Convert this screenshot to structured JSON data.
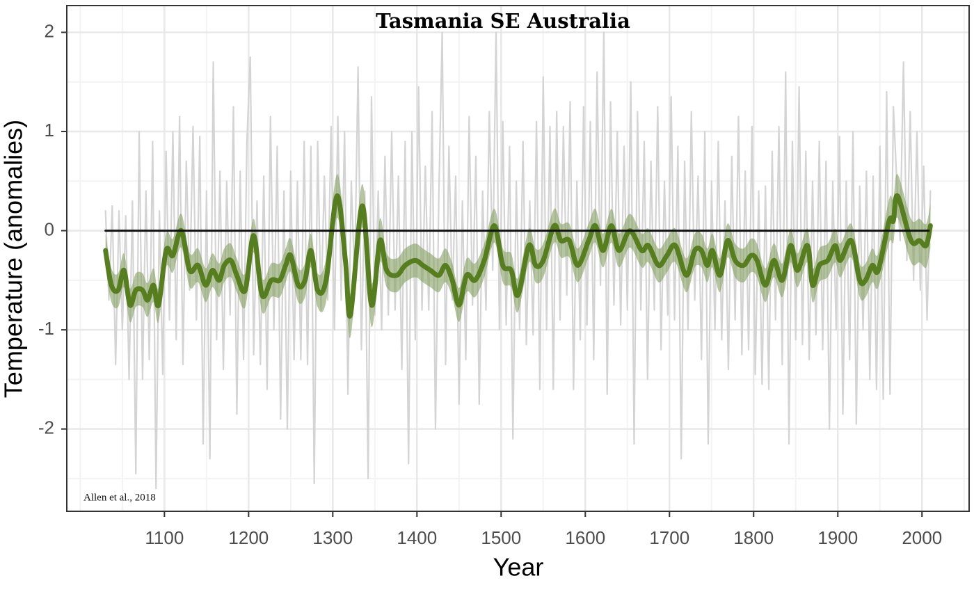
{
  "chart_data": {
    "type": "line",
    "title": "Tasmania SE Australia",
    "annotation": "Allen et al., 2018",
    "x_label": "Year",
    "y_label": "Temperature (anomalies)",
    "xlim": [
      984,
      2056
    ],
    "ylim": [
      -2.83,
      2.27
    ],
    "xticks": [
      1100,
      1200,
      1300,
      1400,
      1500,
      1600,
      1700,
      1800,
      1900,
      2000
    ],
    "yticks": [
      -2,
      -1,
      0,
      1,
      2
    ],
    "x_minor_grid": [
      1000,
      1050,
      1150,
      1250,
      1350,
      1450,
      1550,
      1650,
      1750,
      1850,
      1950,
      2050
    ],
    "y_minor_grid": [
      -2.5,
      -1.5,
      -0.5,
      0.5,
      1.5
    ],
    "grid": true,
    "series": [
      {
        "color": "#d4d4d4",
        "x": [
          1030,
          1034,
          1038,
          1042,
          1046,
          1050,
          1054,
          1058,
          1062,
          1066,
          1070,
          1074,
          1078,
          1082,
          1086,
          1090,
          1094,
          1098,
          1102,
          1106,
          1110,
          1114,
          1118,
          1122,
          1126,
          1130,
          1134,
          1138,
          1142,
          1146,
          1150,
          1154,
          1158,
          1162,
          1166,
          1170,
          1174,
          1178,
          1182,
          1186,
          1190,
          1194,
          1198,
          1202,
          1206,
          1210,
          1214,
          1218,
          1222,
          1226,
          1230,
          1234,
          1238,
          1242,
          1246,
          1250,
          1254,
          1258,
          1262,
          1266,
          1270,
          1274,
          1278,
          1282,
          1286,
          1290,
          1294,
          1298,
          1302,
          1306,
          1310,
          1314,
          1318,
          1322,
          1326,
          1330,
          1334,
          1338,
          1342,
          1346,
          1350,
          1354,
          1358,
          1362,
          1366,
          1370,
          1374,
          1378,
          1382,
          1386,
          1390,
          1394,
          1398,
          1402,
          1406,
          1410,
          1414,
          1418,
          1422,
          1426,
          1430,
          1434,
          1438,
          1442,
          1446,
          1450,
          1454,
          1458,
          1462,
          1466,
          1470,
          1474,
          1478,
          1482,
          1486,
          1490,
          1494,
          1498,
          1502,
          1506,
          1510,
          1514,
          1518,
          1522,
          1526,
          1530,
          1534,
          1538,
          1542,
          1546,
          1550,
          1554,
          1558,
          1562,
          1566,
          1570,
          1574,
          1578,
          1582,
          1586,
          1590,
          1594,
          1598,
          1602,
          1606,
          1610,
          1614,
          1618,
          1622,
          1626,
          1630,
          1634,
          1638,
          1642,
          1646,
          1650,
          1654,
          1658,
          1662,
          1666,
          1670,
          1674,
          1678,
          1682,
          1686,
          1690,
          1694,
          1698,
          1702,
          1706,
          1710,
          1714,
          1718,
          1722,
          1726,
          1730,
          1734,
          1738,
          1742,
          1746,
          1750,
          1754,
          1758,
          1762,
          1766,
          1770,
          1774,
          1778,
          1782,
          1786,
          1790,
          1794,
          1798,
          1802,
          1806,
          1810,
          1814,
          1818,
          1822,
          1826,
          1830,
          1834,
          1838,
          1842,
          1846,
          1850,
          1854,
          1858,
          1862,
          1866,
          1870,
          1874,
          1878,
          1882,
          1886,
          1890,
          1894,
          1898,
          1902,
          1906,
          1910,
          1914,
          1918,
          1922,
          1926,
          1930,
          1934,
          1938,
          1942,
          1946,
          1950,
          1954,
          1958,
          1962,
          1966,
          1970,
          1974,
          1978,
          1982,
          1986,
          1990,
          1994,
          1998,
          2002,
          2006,
          2010
        ],
        "values": [
          0.2,
          -0.7,
          0.25,
          -1.35,
          0.2,
          -1.0,
          0.15,
          -1.5,
          0.3,
          -2.45,
          1.0,
          -1.5,
          0.4,
          -1.3,
          0.9,
          -2.6,
          0.2,
          -1.45,
          0.8,
          -0.9,
          1.0,
          -1.1,
          1.15,
          -1.35,
          0.7,
          -0.6,
          1.05,
          -0.9,
          0.95,
          -2.15,
          0.4,
          -2.3,
          1.7,
          -1.1,
          0.6,
          -1.4,
          0.5,
          -0.85,
          1.25,
          -1.85,
          0.6,
          -1.3,
          0.9,
          1.75,
          -1.25,
          0.3,
          -1.35,
          0.55,
          -1.6,
          1.15,
          -1.0,
          0.85,
          -1.9,
          0.4,
          -2.0,
          0.6,
          -1.3,
          0.5,
          -1.3,
          0.9,
          -1.35,
          0.85,
          -2.55,
          0.9,
          -0.8,
          0.55,
          -0.7,
          1.05,
          -1.0,
          1.15,
          -0.7,
          1.0,
          -1.65,
          0.5,
          -0.5,
          1.65,
          -1.2,
          0.4,
          -2.5,
          1.35,
          -0.85,
          0.4,
          -1.0,
          0.75,
          -0.85,
          1.0,
          -0.8,
          0.55,
          -1.4,
          0.9,
          -2.35,
          1.0,
          -1.1,
          1.45,
          -0.8,
          0.65,
          -0.8,
          1.2,
          -2.0,
          0.35,
          2.0,
          -1.35,
          0.85,
          -0.7,
          0.55,
          -1.75,
          0.3,
          -1.3,
          1.15,
          -0.75,
          0.75,
          -1.75,
          0.4,
          -0.8,
          1.2,
          -0.4,
          2.0,
          -1.0,
          1.1,
          -0.95,
          0.85,
          -2.1,
          0.5,
          -1.0,
          0.9,
          -1.15,
          0.3,
          -1.05,
          1.1,
          -1.6,
          1.55,
          -1.0,
          1.05,
          -1.6,
          1.2,
          -0.9,
          1.05,
          -0.65,
          1.3,
          -1.6,
          0.5,
          -1.1,
          1.25,
          -0.95,
          1.1,
          -1.3,
          1.6,
          -0.55,
          2.0,
          -1.65,
          1.3,
          -0.75,
          1.0,
          -0.95,
          0.85,
          -0.8,
          1.5,
          -2.15,
          1.2,
          -0.8,
          0.9,
          -1.5,
          0.7,
          -0.8,
          1.25,
          -1.2,
          0.5,
          -0.85,
          1.35,
          -0.9,
          0.85,
          -2.3,
          0.7,
          -1.0,
          1.2,
          -0.7,
          0.55,
          -1.3,
          1.0,
          -2.15,
          0.5,
          -1.0,
          0.9,
          -1.1,
          0.3,
          -1.4,
          0.75,
          -0.9,
          1.15,
          -1.25,
          0.6,
          -1.2,
          1.05,
          -1.45,
          0.4,
          -1.55,
          0.45,
          -1.6,
          0.8,
          -0.9,
          1.05,
          -1.35,
          1.6,
          -2.15,
          0.9,
          -1.1,
          1.45,
          -1.15,
          0.8,
          -1.3,
          0.5,
          -1.05,
          0.9,
          -1.2,
          0.7,
          -2.0,
          0.5,
          -1.0,
          0.95,
          -1.85,
          0.5,
          -1.3,
          1.0,
          -1.95,
          0.45,
          -1.0,
          0.6,
          -1.5,
          0.55,
          -1.6,
          0.85,
          -1.7,
          1.4,
          -1.65,
          1.25,
          0.5,
          -0.1,
          1.7,
          -0.3,
          1.2,
          -0.5,
          1.0,
          -0.6,
          0.65,
          -0.9,
          0.4
        ]
      },
      {
        "color": "#567d1e",
        "band_color": "#86a264",
        "x": [
          1030,
          1037,
          1045,
          1052,
          1059,
          1066,
          1074,
          1080,
          1087,
          1093,
          1102,
          1110,
          1120,
          1130,
          1140,
          1149,
          1157,
          1165,
          1171,
          1179,
          1186,
          1196,
          1206,
          1216,
          1227,
          1237,
          1244,
          1250,
          1259,
          1267,
          1274,
          1282,
          1292,
          1305,
          1315,
          1321,
          1335,
          1346,
          1356,
          1364,
          1376,
          1386,
          1398,
          1407,
          1416,
          1426,
          1434,
          1442,
          1450,
          1459,
          1469,
          1480,
          1492,
          1502,
          1512,
          1520,
          1533,
          1541,
          1550,
          1563,
          1571,
          1581,
          1591,
          1604,
          1612,
          1621,
          1631,
          1640,
          1653,
          1667,
          1675,
          1687,
          1697,
          1707,
          1720,
          1730,
          1738,
          1745,
          1751,
          1760,
          1769,
          1778,
          1788,
          1797,
          1804,
          1814,
          1824,
          1834,
          1844,
          1852,
          1864,
          1870,
          1878,
          1888,
          1897,
          1903,
          1916,
          1926,
          1933,
          1941,
          1948,
          1961,
          1966,
          1971,
          1987,
          1997,
          2005,
          2010
        ],
        "values": [
          -0.2,
          -0.55,
          -0.6,
          -0.4,
          -0.75,
          -0.6,
          -0.6,
          -0.7,
          -0.55,
          -0.75,
          -0.2,
          -0.25,
          0,
          -0.4,
          -0.35,
          -0.55,
          -0.4,
          -0.5,
          -0.35,
          -0.3,
          -0.45,
          -0.6,
          -0.05,
          -0.65,
          -0.5,
          -0.5,
          -0.35,
          -0.25,
          -0.55,
          -0.5,
          -0.2,
          -0.6,
          -0.5,
          0.35,
          -0.3,
          -0.85,
          0.25,
          -0.75,
          -0.1,
          -0.4,
          -0.45,
          -0.35,
          -0.3,
          -0.35,
          -0.4,
          -0.45,
          -0.35,
          -0.5,
          -0.75,
          -0.45,
          -0.5,
          -0.3,
          0.05,
          -0.35,
          -0.4,
          -0.65,
          -0.15,
          -0.35,
          -0.3,
          0.05,
          -0.1,
          -0.1,
          -0.35,
          -0.1,
          0.05,
          -0.2,
          0.05,
          -0.2,
          0,
          -0.2,
          -0.15,
          -0.35,
          -0.25,
          -0.15,
          -0.45,
          -0.2,
          -0.2,
          -0.35,
          -0.2,
          -0.45,
          -0.1,
          -0.3,
          -0.35,
          -0.25,
          -0.3,
          -0.55,
          -0.3,
          -0.5,
          -0.15,
          -0.4,
          -0.15,
          -0.55,
          -0.35,
          -0.3,
          -0.15,
          -0.3,
          -0.1,
          -0.5,
          -0.5,
          -0.35,
          -0.4,
          0.1,
          0.1,
          0.35,
          -0.1,
          -0.1,
          -0.15,
          0.05
        ],
        "upper": [
          -0.03,
          -0.38,
          -0.43,
          -0.23,
          -0.58,
          -0.43,
          -0.43,
          -0.53,
          -0.38,
          -0.58,
          -0.03,
          -0.08,
          0.17,
          -0.23,
          -0.18,
          -0.38,
          -0.23,
          -0.33,
          -0.18,
          -0.13,
          -0.28,
          -0.43,
          0.12,
          -0.48,
          -0.33,
          -0.33,
          -0.18,
          -0.08,
          -0.38,
          -0.33,
          -0.03,
          -0.43,
          -0.28,
          0.57,
          -0.08,
          -0.63,
          0.47,
          -0.53,
          0.12,
          -0.23,
          -0.28,
          -0.18,
          -0.13,
          -0.18,
          -0.23,
          -0.28,
          -0.18,
          -0.33,
          -0.58,
          -0.28,
          -0.33,
          -0.13,
          0.22,
          -0.18,
          -0.23,
          -0.48,
          0.02,
          -0.18,
          -0.13,
          0.22,
          0.07,
          0.07,
          -0.18,
          0.07,
          0.22,
          -0.03,
          0.22,
          -0.03,
          0.17,
          -0.03,
          0.02,
          -0.18,
          -0.08,
          0.02,
          -0.28,
          -0.03,
          -0.03,
          -0.18,
          -0.03,
          -0.28,
          0.07,
          -0.13,
          -0.18,
          -0.08,
          -0.13,
          -0.38,
          -0.13,
          -0.33,
          0.02,
          -0.23,
          0.02,
          -0.38,
          -0.18,
          -0.13,
          0.02,
          -0.13,
          0.07,
          -0.33,
          -0.33,
          -0.18,
          -0.23,
          0.32,
          0.32,
          0.57,
          0.12,
          0.12,
          0.07,
          0.27
        ],
        "lower": [
          -0.37,
          -0.72,
          -0.77,
          -0.57,
          -0.92,
          -0.77,
          -0.77,
          -0.87,
          -0.72,
          -0.92,
          -0.37,
          -0.42,
          -0.17,
          -0.57,
          -0.52,
          -0.72,
          -0.57,
          -0.67,
          -0.52,
          -0.47,
          -0.62,
          -0.77,
          -0.22,
          -0.82,
          -0.67,
          -0.67,
          -0.52,
          -0.42,
          -0.72,
          -0.67,
          -0.37,
          -0.77,
          -0.72,
          0.13,
          -0.52,
          -1.07,
          0.03,
          -0.97,
          -0.32,
          -0.57,
          -0.62,
          -0.52,
          -0.47,
          -0.52,
          -0.57,
          -0.62,
          -0.52,
          -0.67,
          -0.92,
          -0.62,
          -0.67,
          -0.47,
          -0.12,
          -0.52,
          -0.57,
          -0.82,
          -0.32,
          -0.52,
          -0.47,
          -0.12,
          -0.27,
          -0.27,
          -0.52,
          -0.27,
          -0.12,
          -0.37,
          -0.12,
          -0.37,
          -0.17,
          -0.37,
          -0.32,
          -0.52,
          -0.42,
          -0.32,
          -0.62,
          -0.37,
          -0.37,
          -0.52,
          -0.37,
          -0.62,
          -0.27,
          -0.47,
          -0.52,
          -0.42,
          -0.47,
          -0.72,
          -0.47,
          -0.67,
          -0.32,
          -0.57,
          -0.32,
          -0.72,
          -0.52,
          -0.47,
          -0.32,
          -0.47,
          -0.27,
          -0.67,
          -0.67,
          -0.52,
          -0.57,
          -0.12,
          -0.12,
          0.13,
          -0.32,
          -0.32,
          -0.37,
          -0.17
        ]
      },
      {
        "color": "#111111",
        "x": [
          1030,
          2008
        ],
        "values": [
          0,
          0
        ]
      }
    ]
  }
}
